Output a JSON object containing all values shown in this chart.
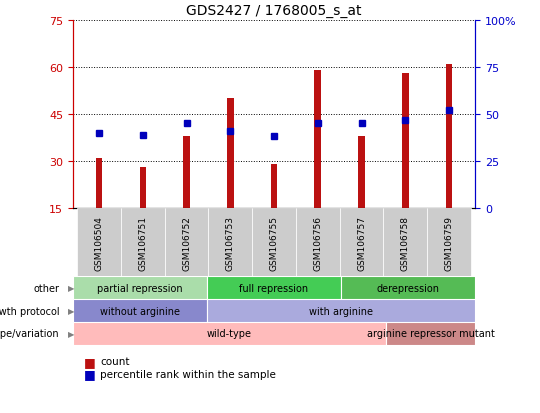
{
  "title": "GDS2427 / 1768005_s_at",
  "samples": [
    "GSM106504",
    "GSM106751",
    "GSM106752",
    "GSM106753",
    "GSM106755",
    "GSM106756",
    "GSM106757",
    "GSM106758",
    "GSM106759"
  ],
  "counts": [
    31,
    28,
    38,
    50,
    29,
    59,
    38,
    58,
    61
  ],
  "percentile_ranks": [
    40,
    39,
    45,
    41,
    38,
    45,
    45,
    47,
    52
  ],
  "ylim_left": [
    15,
    75
  ],
  "ylim_right": [
    0,
    100
  ],
  "yticks_left": [
    15,
    30,
    45,
    60,
    75
  ],
  "yticks_right": [
    0,
    25,
    50,
    75,
    100
  ],
  "bar_color": "#bb1111",
  "dot_color": "#0000bb",
  "bar_width": 0.15,
  "groups": {
    "other": [
      {
        "label": "partial repression",
        "start": 0,
        "end": 3,
        "color": "#aaddaa"
      },
      {
        "label": "full repression",
        "start": 3,
        "end": 6,
        "color": "#44cc55"
      },
      {
        "label": "derepression",
        "start": 6,
        "end": 9,
        "color": "#55bb55"
      }
    ],
    "growth_protocol": [
      {
        "label": "without arginine",
        "start": 0,
        "end": 3,
        "color": "#8888cc"
      },
      {
        "label": "with arginine",
        "start": 3,
        "end": 9,
        "color": "#aaaadd"
      }
    ],
    "genotype": [
      {
        "label": "wild-type",
        "start": 0,
        "end": 7,
        "color": "#ffbbbb"
      },
      {
        "label": "arginine repressor mutant",
        "start": 7,
        "end": 9,
        "color": "#cc8888"
      }
    ]
  },
  "row_labels": [
    "other",
    "growth protocol",
    "genotype/variation"
  ],
  "legend_items": [
    {
      "color": "#bb1111",
      "label": "count"
    },
    {
      "color": "#0000bb",
      "label": "percentile rank within the sample"
    }
  ],
  "tick_color_left": "#cc0000",
  "tick_color_right": "#0000cc",
  "xlabel_bg_color": "#cccccc",
  "background_color": "#ffffff"
}
